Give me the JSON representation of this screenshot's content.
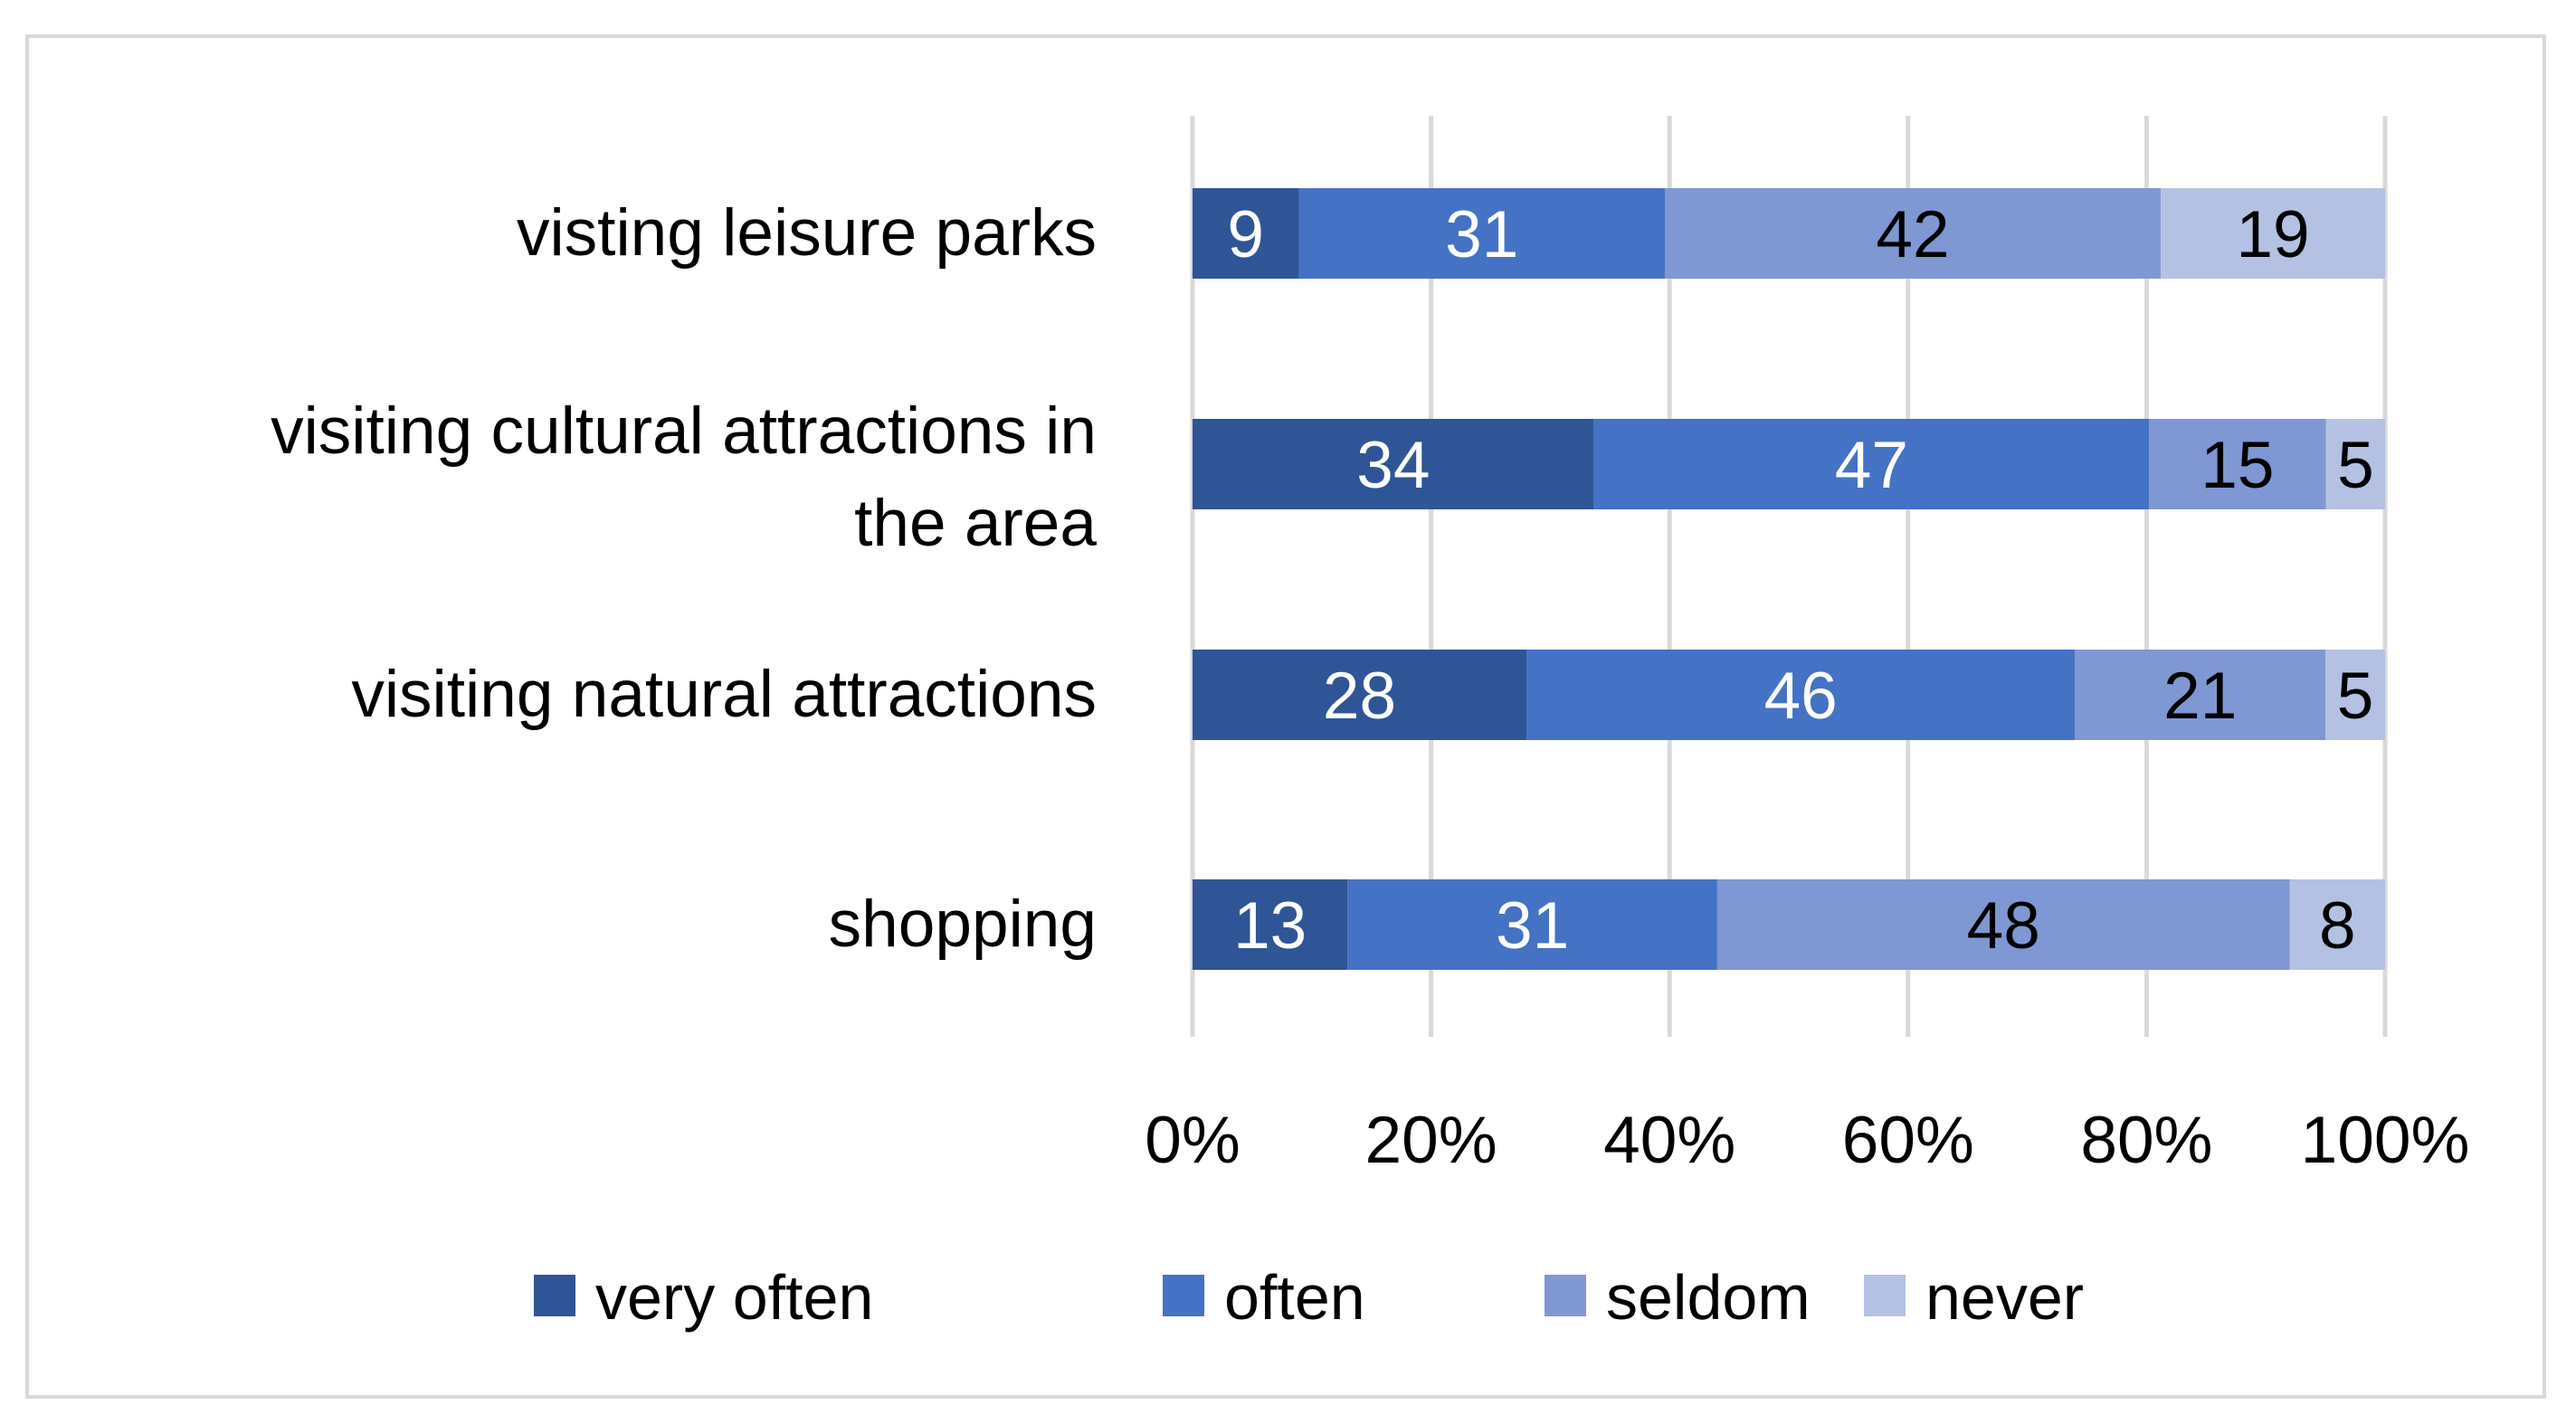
{
  "chart_data": {
    "type": "bar",
    "orientation": "horizontal",
    "stacked": "percent",
    "title": "",
    "xlabel": "",
    "ylabel": "",
    "xlim": [
      0,
      100
    ],
    "tick_labels": [
      "0%",
      "20%",
      "40%",
      "60%",
      "80%",
      "100%"
    ],
    "tick_values": [
      0,
      20,
      40,
      60,
      80,
      100
    ],
    "grid": true,
    "legend_position": "bottom",
    "categories": [
      {
        "line1": "visting leisure parks",
        "line2": ""
      },
      {
        "line1": "visiting cultural attractions in",
        "line2": "the area"
      },
      {
        "line1": "visiting natural attractions",
        "line2": ""
      },
      {
        "line1": "shopping",
        "line2": ""
      }
    ],
    "series": [
      {
        "name": "very often",
        "color": "#2f5597",
        "label_color": "#ffffff",
        "values": [
          9,
          34,
          28,
          13
        ]
      },
      {
        "name": "often",
        "color": "#4472c4",
        "label_color": "#ffffff",
        "values": [
          31,
          47,
          46,
          31
        ]
      },
      {
        "name": "seldom",
        "color": "#7f97d3",
        "label_color": "#000000",
        "values": [
          42,
          15,
          21,
          48
        ]
      },
      {
        "name": "never",
        "color": "#b4c1e3",
        "label_color": "#000000",
        "values": [
          19,
          5,
          5,
          8
        ]
      }
    ]
  }
}
